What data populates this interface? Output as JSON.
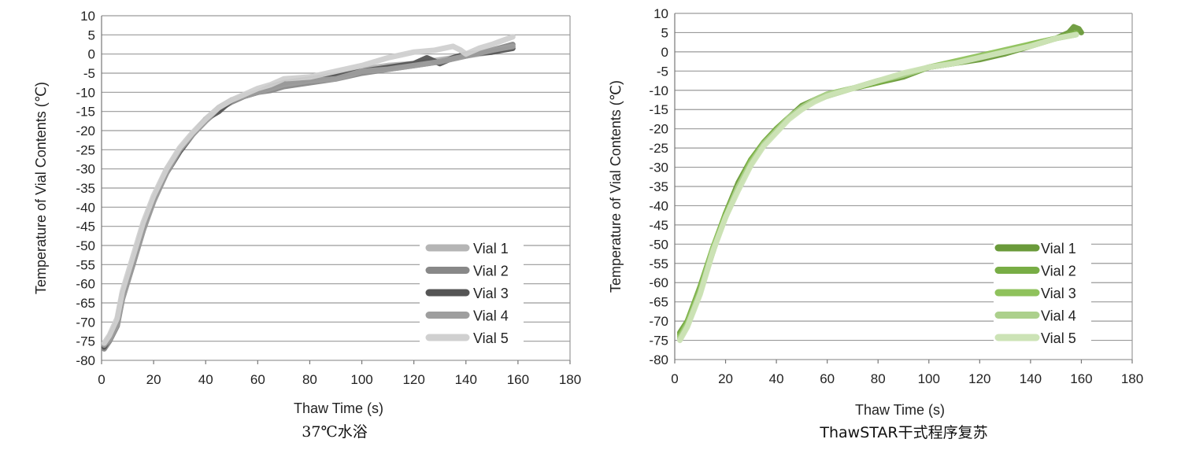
{
  "chart_data": [
    {
      "type": "line",
      "caption": "37℃水浴",
      "xlabel": "Thaw Time (s)",
      "ylabel": "Temperature of Vial Contents (℃)",
      "xlim": [
        0,
        180
      ],
      "ylim": [
        -80,
        10
      ],
      "xticks": [
        0,
        20,
        40,
        60,
        80,
        100,
        120,
        140,
        160,
        180
      ],
      "yticks": [
        10,
        5,
        0,
        -5,
        -10,
        -15,
        -20,
        -25,
        -30,
        -35,
        -40,
        -45,
        -50,
        -55,
        -60,
        -65,
        -70,
        -75,
        -80
      ],
      "grid": true,
      "legend_position": "bottom-right",
      "series": [
        {
          "name": "Vial 1",
          "color": "#b5b5b5",
          "points": [
            [
              1,
              -76
            ],
            [
              3,
              -74
            ],
            [
              6,
              -70
            ],
            [
              8,
              -63
            ],
            [
              12,
              -54
            ],
            [
              16,
              -45
            ],
            [
              20,
              -38
            ],
            [
              25,
              -30
            ],
            [
              30,
              -25
            ],
            [
              35,
              -21
            ],
            [
              40,
              -17
            ],
            [
              45,
              -14
            ],
            [
              50,
              -12
            ],
            [
              55,
              -11
            ],
            [
              60,
              -10
            ],
            [
              65,
              -9
            ],
            [
              70,
              -7.5
            ],
            [
              80,
              -7
            ],
            [
              90,
              -6
            ],
            [
              100,
              -4
            ],
            [
              110,
              -3
            ],
            [
              120,
              -2.5
            ],
            [
              130,
              -1.5
            ],
            [
              140,
              -0.5
            ],
            [
              150,
              0.5
            ],
            [
              158,
              2
            ]
          ]
        },
        {
          "name": "Vial 2",
          "color": "#888888",
          "points": [
            [
              1,
              -77
            ],
            [
              3,
              -75
            ],
            [
              6,
              -71
            ],
            [
              8,
              -64
            ],
            [
              12,
              -55
            ],
            [
              16,
              -46
            ],
            [
              20,
              -38
            ],
            [
              25,
              -31
            ],
            [
              30,
              -25
            ],
            [
              35,
              -21
            ],
            [
              40,
              -17.5
            ],
            [
              45,
              -14.5
            ],
            [
              50,
              -12.5
            ],
            [
              55,
              -11
            ],
            [
              60,
              -10
            ],
            [
              65,
              -9.5
            ],
            [
              70,
              -8.5
            ],
            [
              80,
              -7.5
            ],
            [
              90,
              -6.5
            ],
            [
              100,
              -5
            ],
            [
              110,
              -4
            ],
            [
              120,
              -3
            ],
            [
              130,
              -2
            ],
            [
              140,
              -0.5
            ],
            [
              150,
              1
            ],
            [
              158,
              2.5
            ]
          ]
        },
        {
          "name": "Vial 3",
          "color": "#555555",
          "points": [
            [
              1,
              -76.5
            ],
            [
              3,
              -74
            ],
            [
              6,
              -70
            ],
            [
              8,
              -63
            ],
            [
              12,
              -55
            ],
            [
              16,
              -45
            ],
            [
              20,
              -38
            ],
            [
              25,
              -31
            ],
            [
              30,
              -25.5
            ],
            [
              35,
              -21
            ],
            [
              40,
              -17
            ],
            [
              45,
              -15
            ],
            [
              50,
              -12
            ],
            [
              55,
              -11
            ],
            [
              60,
              -10
            ],
            [
              65,
              -8.5
            ],
            [
              70,
              -7.5
            ],
            [
              80,
              -6.5
            ],
            [
              90,
              -5.5
            ],
            [
              100,
              -4.5
            ],
            [
              110,
              -3.5
            ],
            [
              120,
              -2.5
            ],
            [
              125,
              -1
            ],
            [
              130,
              -2.5
            ],
            [
              135,
              -1
            ],
            [
              140,
              0
            ],
            [
              150,
              0.5
            ],
            [
              158,
              1.5
            ]
          ]
        },
        {
          "name": "Vial 4",
          "color": "#9e9e9e",
          "points": [
            [
              1,
              -76
            ],
            [
              3,
              -74.5
            ],
            [
              6,
              -70.5
            ],
            [
              8,
              -64
            ],
            [
              12,
              -55
            ],
            [
              16,
              -46
            ],
            [
              20,
              -38.5
            ],
            [
              25,
              -31
            ],
            [
              30,
              -25
            ],
            [
              35,
              -21
            ],
            [
              40,
              -17.5
            ],
            [
              45,
              -14
            ],
            [
              50,
              -12
            ],
            [
              55,
              -11
            ],
            [
              60,
              -10
            ],
            [
              65,
              -9
            ],
            [
              70,
              -8
            ],
            [
              80,
              -7
            ],
            [
              90,
              -6.5
            ],
            [
              100,
              -4.5
            ],
            [
              110,
              -4
            ],
            [
              120,
              -3
            ],
            [
              130,
              -2
            ],
            [
              140,
              -0.5
            ],
            [
              150,
              1
            ],
            [
              158,
              2
            ]
          ]
        },
        {
          "name": "Vial 5",
          "color": "#d0d0d0",
          "points": [
            [
              1,
              -75.5
            ],
            [
              3,
              -73.5
            ],
            [
              6,
              -69
            ],
            [
              8,
              -62
            ],
            [
              12,
              -53
            ],
            [
              16,
              -44
            ],
            [
              20,
              -37
            ],
            [
              25,
              -30
            ],
            [
              30,
              -24.5
            ],
            [
              35,
              -20.5
            ],
            [
              40,
              -17
            ],
            [
              45,
              -14
            ],
            [
              50,
              -12
            ],
            [
              55,
              -10.5
            ],
            [
              60,
              -9
            ],
            [
              65,
              -8
            ],
            [
              70,
              -6.5
            ],
            [
              80,
              -6
            ],
            [
              90,
              -4.5
            ],
            [
              100,
              -3
            ],
            [
              110,
              -1
            ],
            [
              120,
              0.5
            ],
            [
              128,
              1
            ],
            [
              135,
              2
            ],
            [
              138,
              1
            ],
            [
              140,
              0
            ],
            [
              145,
              1.5
            ],
            [
              150,
              2.5
            ],
            [
              158,
              4.5
            ]
          ]
        }
      ]
    },
    {
      "type": "line",
      "caption": "ThawSTAR干式程序复苏",
      "xlabel": "Thaw Time (s)",
      "ylabel": "Temperature of Vial Contents (℃)",
      "xlim": [
        0,
        180
      ],
      "ylim": [
        -80,
        10
      ],
      "xticks": [
        0,
        20,
        40,
        60,
        80,
        100,
        120,
        140,
        160,
        180
      ],
      "yticks": [
        10,
        5,
        0,
        -5,
        -10,
        -15,
        -20,
        -25,
        -30,
        -35,
        -40,
        -45,
        -50,
        -55,
        -60,
        -65,
        -70,
        -75,
        -80
      ],
      "grid": true,
      "legend_position": "bottom-right",
      "series": [
        {
          "name": "Vial 1",
          "color": "#6a9a3a",
          "points": [
            [
              2,
              -73
            ],
            [
              5,
              -70
            ],
            [
              10,
              -62
            ],
            [
              15,
              -52
            ],
            [
              20,
              -42
            ],
            [
              25,
              -34
            ],
            [
              30,
              -28
            ],
            [
              35,
              -24
            ],
            [
              40,
              -20
            ],
            [
              45,
              -17
            ],
            [
              50,
              -14
            ],
            [
              55,
              -12.5
            ],
            [
              60,
              -11
            ],
            [
              70,
              -9.5
            ],
            [
              80,
              -8
            ],
            [
              90,
              -6.5
            ],
            [
              100,
              -4
            ],
            [
              110,
              -3
            ],
            [
              120,
              -2
            ],
            [
              130,
              -0.5
            ],
            [
              140,
              1.5
            ],
            [
              150,
              3.5
            ],
            [
              155,
              5
            ],
            [
              157,
              6.5
            ],
            [
              159,
              6
            ],
            [
              160,
              5
            ]
          ]
        },
        {
          "name": "Vial 2",
          "color": "#78ad45",
          "points": [
            [
              2,
              -73.5
            ],
            [
              5,
              -70
            ],
            [
              10,
              -61
            ],
            [
              15,
              -51
            ],
            [
              20,
              -42
            ],
            [
              25,
              -35
            ],
            [
              30,
              -28
            ],
            [
              35,
              -23.5
            ],
            [
              40,
              -20
            ],
            [
              45,
              -17
            ],
            [
              50,
              -14.5
            ],
            [
              55,
              -12.5
            ],
            [
              60,
              -11.5
            ],
            [
              70,
              -9.5
            ],
            [
              80,
              -8
            ],
            [
              90,
              -6
            ],
            [
              100,
              -4
            ],
            [
              110,
              -3
            ],
            [
              120,
              -1.5
            ],
            [
              130,
              0
            ],
            [
              140,
              2
            ],
            [
              150,
              3.5
            ],
            [
              158,
              5
            ]
          ]
        },
        {
          "name": "Vial 3",
          "color": "#8fc25c",
          "points": [
            [
              2,
              -74
            ],
            [
              5,
              -70.5
            ],
            [
              10,
              -62
            ],
            [
              15,
              -51
            ],
            [
              20,
              -42.5
            ],
            [
              25,
              -35
            ],
            [
              30,
              -28.5
            ],
            [
              35,
              -24
            ],
            [
              40,
              -20.5
            ],
            [
              45,
              -17
            ],
            [
              50,
              -14.5
            ],
            [
              55,
              -12.5
            ],
            [
              60,
              -11
            ],
            [
              70,
              -9.5
            ],
            [
              80,
              -7.5
            ],
            [
              90,
              -6
            ],
            [
              100,
              -4
            ],
            [
              110,
              -2.5
            ],
            [
              120,
              -1
            ],
            [
              130,
              0.5
            ],
            [
              140,
              2
            ],
            [
              150,
              3.5
            ],
            [
              158,
              4.5
            ]
          ]
        },
        {
          "name": "Vial 4",
          "color": "#acd08c",
          "points": [
            [
              2,
              -74.5
            ],
            [
              5,
              -71
            ],
            [
              10,
              -62.5
            ],
            [
              15,
              -51.5
            ],
            [
              20,
              -43
            ],
            [
              25,
              -35
            ],
            [
              30,
              -29
            ],
            [
              35,
              -24
            ],
            [
              40,
              -20.5
            ],
            [
              45,
              -17
            ],
            [
              50,
              -14.5
            ],
            [
              55,
              -12.5
            ],
            [
              60,
              -11
            ],
            [
              70,
              -9.5
            ],
            [
              80,
              -7.5
            ],
            [
              90,
              -6
            ],
            [
              100,
              -4
            ],
            [
              110,
              -3
            ],
            [
              120,
              -1.5
            ],
            [
              130,
              0
            ],
            [
              140,
              1.5
            ],
            [
              150,
              3.5
            ],
            [
              158,
              4.5
            ]
          ]
        },
        {
          "name": "Vial 5",
          "color": "#cce3b6",
          "points": [
            [
              2,
              -75
            ],
            [
              5,
              -71.5
            ],
            [
              10,
              -63
            ],
            [
              15,
              -52
            ],
            [
              20,
              -43
            ],
            [
              25,
              -36
            ],
            [
              30,
              -29.5
            ],
            [
              35,
              -24.5
            ],
            [
              40,
              -21
            ],
            [
              45,
              -17.5
            ],
            [
              50,
              -15
            ],
            [
              55,
              -13
            ],
            [
              60,
              -11.5
            ],
            [
              70,
              -9.5
            ],
            [
              80,
              -7.5
            ],
            [
              90,
              -5.5
            ],
            [
              100,
              -4
            ],
            [
              110,
              -3
            ],
            [
              120,
              -1.5
            ],
            [
              130,
              0
            ],
            [
              140,
              1.5
            ],
            [
              150,
              3.5
            ],
            [
              158,
              4.5
            ]
          ]
        }
      ]
    }
  ]
}
